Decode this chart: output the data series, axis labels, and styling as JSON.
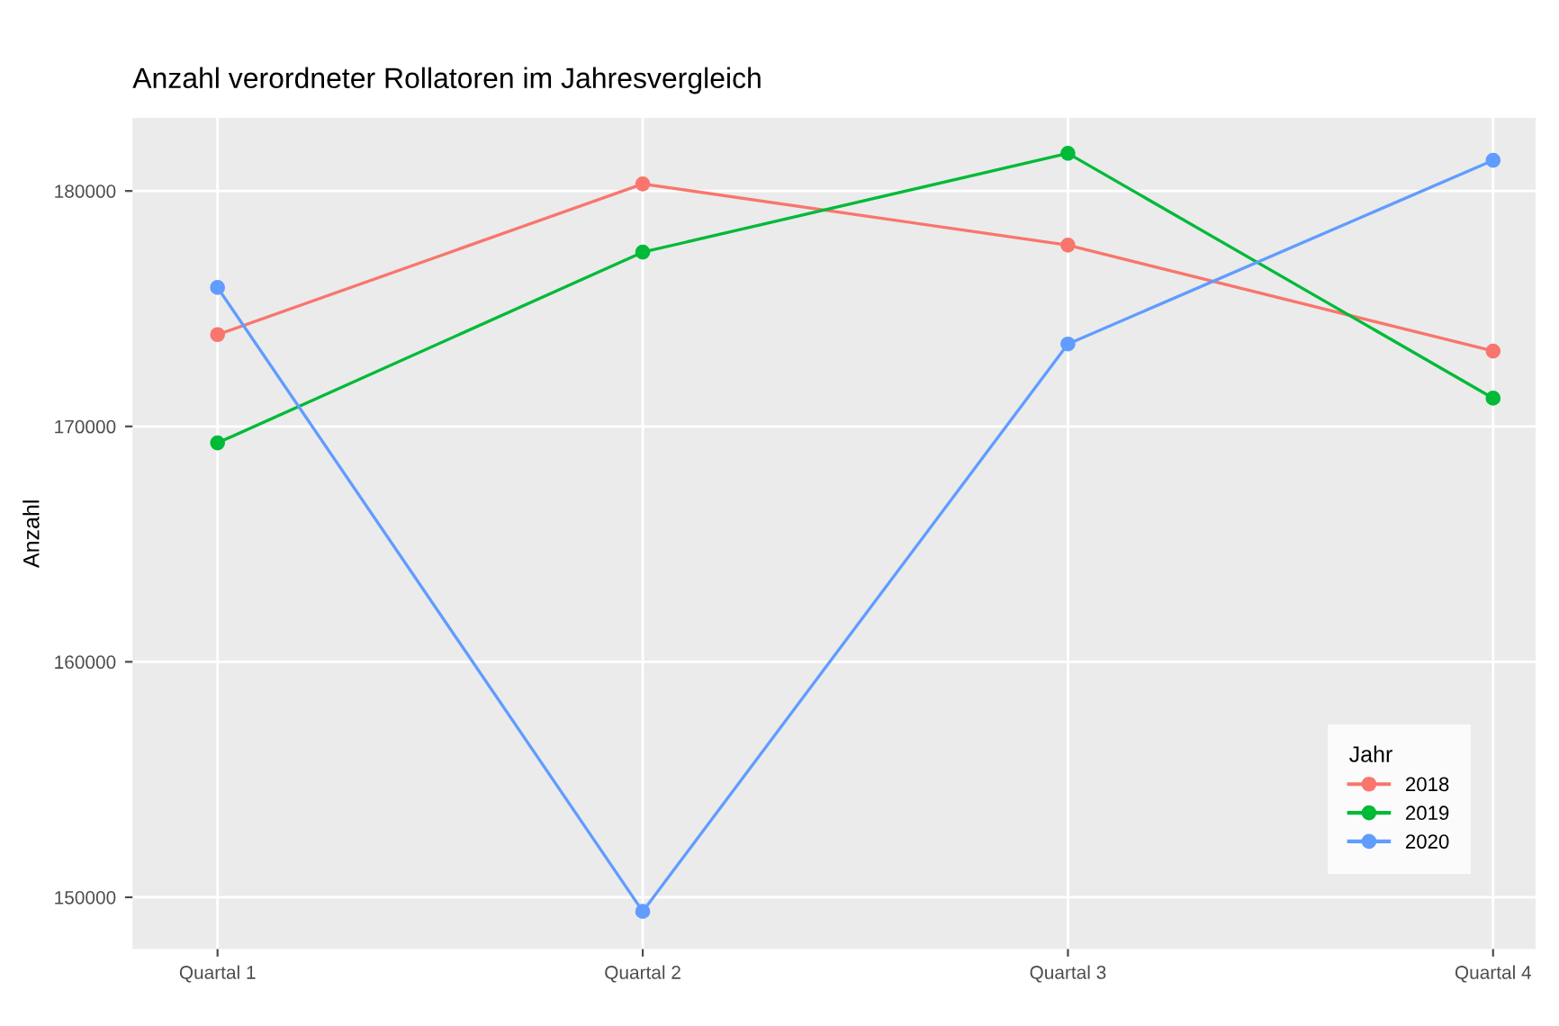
{
  "chart_data": {
    "type": "line",
    "title": "Anzahl verordneter Rollatoren im Jahresvergleich",
    "ylabel": "Anzahl",
    "legend_title": "Jahr",
    "categories": [
      "Quartal 1",
      "Quartal 2",
      "Quartal 3",
      "Quartal 4"
    ],
    "series": [
      {
        "name": "2018",
        "color": "#f8766d",
        "values": [
          173900,
          180300,
          177700,
          173200
        ]
      },
      {
        "name": "2019",
        "color": "#00ba38",
        "values": [
          169300,
          177400,
          181600,
          171200
        ]
      },
      {
        "name": "2020",
        "color": "#619cff",
        "values": [
          175900,
          149400,
          173500,
          181300
        ]
      }
    ],
    "ylim": [
      147800,
      183100
    ],
    "yticks": [
      150000,
      160000,
      170000,
      180000
    ],
    "grid": true,
    "legend": "bottom right",
    "marker": "circle",
    "line_style": "solid"
  }
}
